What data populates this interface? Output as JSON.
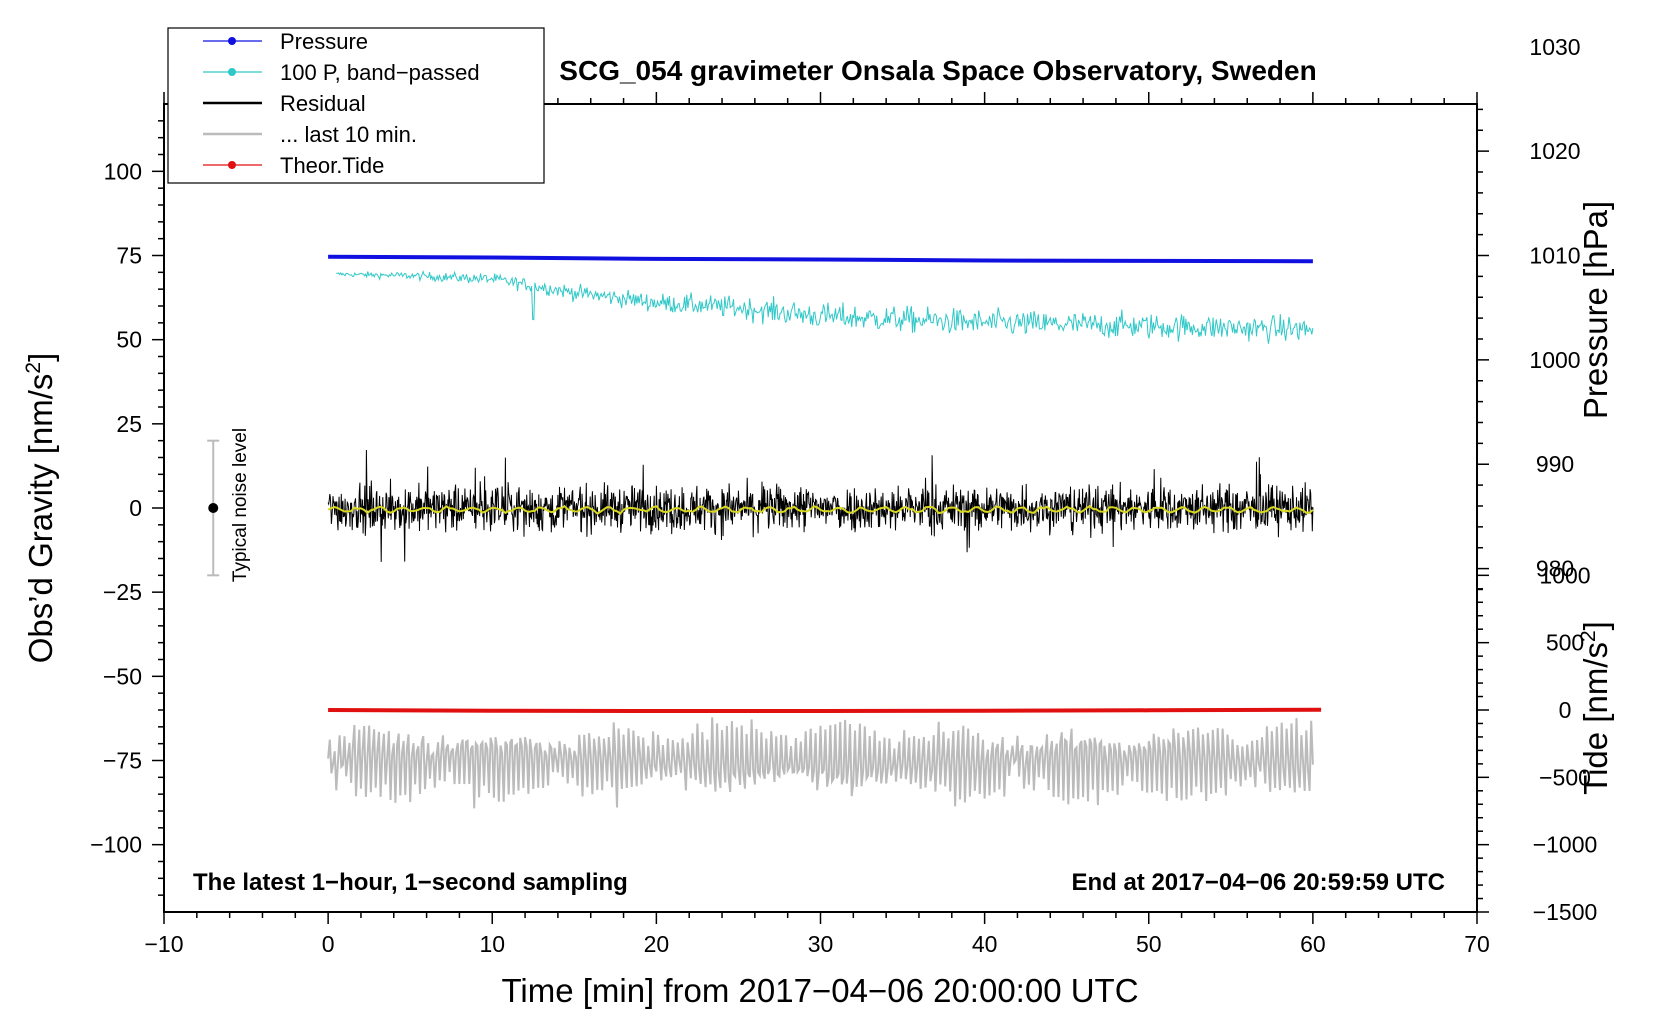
{
  "chart_data": {
    "type": "line",
    "title": "SCG_054 gravimeter Onsala Space Observatory, Sweden",
    "xlabel": "Time [min] from 2017−04−06 20:00:00 UTC",
    "ylabel_left": "Obs’d Gravity [nm/s",
    "ylabel_left_sup": "2",
    "ylabel_left_end": "]",
    "ylabel_right_top": "Pressure [hPa]",
    "ylabel_right_bottom": "Tide [nm/s",
    "ylabel_right_bottom_sup": "2",
    "ylabel_right_bottom_end": "]",
    "xlim": [
      -10,
      70
    ],
    "ylim": [
      -120,
      120
    ],
    "x_ticks": [
      -10,
      0,
      10,
      20,
      30,
      40,
      50,
      60,
      70
    ],
    "x_tick_labels": [
      "−10",
      "0",
      "10",
      "20",
      "30",
      "40",
      "50",
      "60",
      "70"
    ],
    "y_ticks": [
      100,
      75,
      50,
      25,
      0,
      -25,
      -50,
      -75,
      -100
    ],
    "y_tick_labels": [
      "100",
      "75",
      "50",
      "25",
      "0",
      "−25",
      "−50",
      "−75",
      "−100"
    ],
    "pressure_ticks": [
      1030,
      1020,
      1010,
      1000,
      990,
      980
    ],
    "pressure_tick_labels": [
      "1030",
      "1020",
      "1010",
      "1000",
      "990",
      "980"
    ],
    "pressure_scale": {
      "hpa_ref": 1010,
      "gravity_at_ref": 75,
      "nm_per_hpa": 3.1
    },
    "tide_ticks": [
      1000,
      500,
      0,
      -500,
      -1000,
      -1500
    ],
    "tide_tick_labels": [
      "1000",
      "500",
      "0",
      "−500",
      "−1000",
      "−1500"
    ],
    "tide_scale": {
      "gravity_at_zero": -60,
      "nm_per_unit": 0.04
    },
    "annotation_left": "The latest 1−hour, 1−second sampling",
    "annotation_right": "End at 2017−04−06 20:59:59 UTC",
    "noise_label": "Typical noise level",
    "noise": {
      "x": -7,
      "center": 0,
      "low": -20,
      "high": 20
    },
    "legend": [
      {
        "label": "Pressure",
        "color": "#1010e0",
        "marker": true
      },
      {
        "label": "100 P, band−passed",
        "color": "#30c8c8",
        "marker": true
      },
      {
        "label": "Residual",
        "color": "#000000",
        "marker": false
      },
      {
        "label": "... last 10 min.",
        "color": "#bbbbbb",
        "marker": false
      },
      {
        "label": "Theor.Tide",
        "color": "#e01010",
        "marker": true
      }
    ],
    "series": [
      {
        "name": "Pressure",
        "color": "#1010e0",
        "x": [
          0,
          10,
          20,
          30,
          40,
          50,
          60
        ],
        "y": [
          74.6,
          74.4,
          74.0,
          73.8,
          73.5,
          73.4,
          73.3
        ]
      },
      {
        "name": "100 P, band-passed",
        "color": "#30c8c8",
        "x": [
          0,
          5,
          10,
          12.5,
          15,
          20,
          25,
          30,
          35,
          40,
          45,
          50,
          55,
          60
        ],
        "y": [
          69.5,
          69,
          68,
          66,
          64,
          61,
          59.5,
          57,
          56,
          55,
          54.5,
          54,
          53.5,
          53
        ]
      },
      {
        "name": "Residual",
        "color": "#000000",
        "x": [
          0,
          60
        ],
        "y": [
          0,
          0
        ],
        "amplitude": 12
      },
      {
        "name": "Residual smoothed",
        "color": "#d8d820",
        "x": [
          0,
          60
        ],
        "y": [
          -0.5,
          -0.5
        ]
      },
      {
        "name": "... last 10 min.",
        "color": "#bbbbbb",
        "x": [
          0,
          60
        ],
        "y": [
          -75,
          -75
        ],
        "amplitude": 11
      },
      {
        "name": "Theor.Tide",
        "color": "#e01010",
        "x": [
          0,
          10,
          20,
          30,
          40,
          50,
          60.5
        ],
        "y": [
          -60,
          -60.2,
          -60.3,
          -60.3,
          -60.2,
          -60.1,
          -59.9
        ]
      }
    ]
  }
}
